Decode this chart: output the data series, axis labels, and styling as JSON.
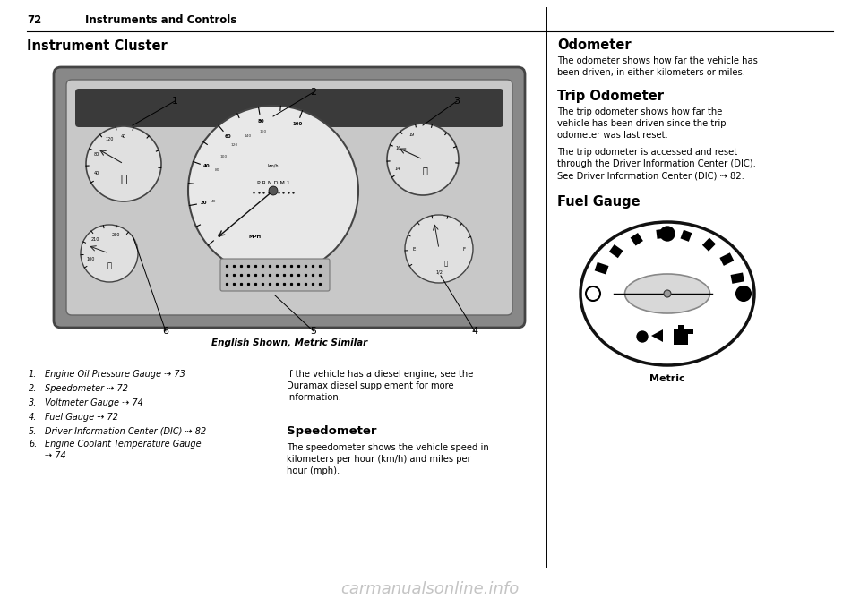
{
  "page_num": "72",
  "header_text": "Instruments and Controls",
  "section_title": "Instrument Cluster",
  "caption": "English Shown, Metric Similar",
  "right_col_title1": "Odometer",
  "right_col_body1": "The odometer shows how far the vehicle has\nbeen driven, in either kilometers or miles.",
  "right_col_title2": "Trip Odometer",
  "right_col_body2a": "The trip odometer shows how far the\nvehicle has been driven since the trip\nodometer was last reset.",
  "right_col_body2b": "The trip odometer is accessed and reset\nthrough the Driver Information Center (DIC).\nSee Driver Information Center (DIC) ⇢ 82.",
  "right_col_title3": "Fuel Gauge",
  "fuel_gauge_label": "Metric",
  "left_col_para": "If the vehicle has a diesel engine, see the\nDuramax diesel supplement for more\ninformation.",
  "speedometer_title": "Speedometer",
  "speedometer_body": "The speedometer shows the vehicle speed in\nkilometers per hour (km/h) and miles per\nhour (mph).",
  "bg_color": "#ffffff",
  "watermark": "carmanualsonline.info",
  "list_items": [
    [
      "1.",
      "Engine Oil Pressure Gauge ⇢ 73"
    ],
    [
      "2.",
      "Speedometer ⇢ 72"
    ],
    [
      "3.",
      "Voltmeter Gauge ⇢ 74"
    ],
    [
      "4.",
      "Fuel Gauge ⇢ 72"
    ],
    [
      "5.",
      "Driver Information Center (DIC) ⇢ 82"
    ],
    [
      "6.",
      "Engine Coolant Temperature Gauge\n        ⇢ 74"
    ]
  ]
}
